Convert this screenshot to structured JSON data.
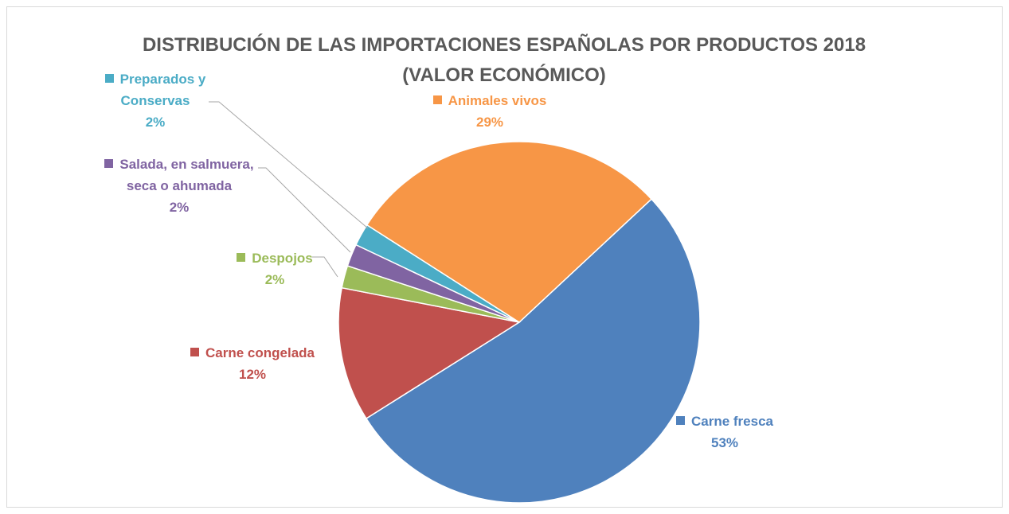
{
  "chart_data": {
    "type": "pie",
    "title": "DISTRIBUCIÓN DE LAS IMPORTACIONES ESPAÑOLAS POR PRODUCTOS 2018 (VALOR ECONÓMICO)",
    "categories": [
      "Carne fresca",
      "Carne congelada",
      "Despojos",
      "Salada, en salmuera, seca o ahumada",
      "Preparados y Conservas",
      "Animales vivos"
    ],
    "values": [
      53,
      12,
      2,
      2,
      2,
      29
    ],
    "value_labels": [
      "53%",
      "12%",
      "2%",
      "2%",
      "2%",
      "29%"
    ],
    "colors": [
      "#4f81bd",
      "#c0504d",
      "#9bbb59",
      "#8064a2",
      "#4bacc6",
      "#f79646"
    ]
  }
}
